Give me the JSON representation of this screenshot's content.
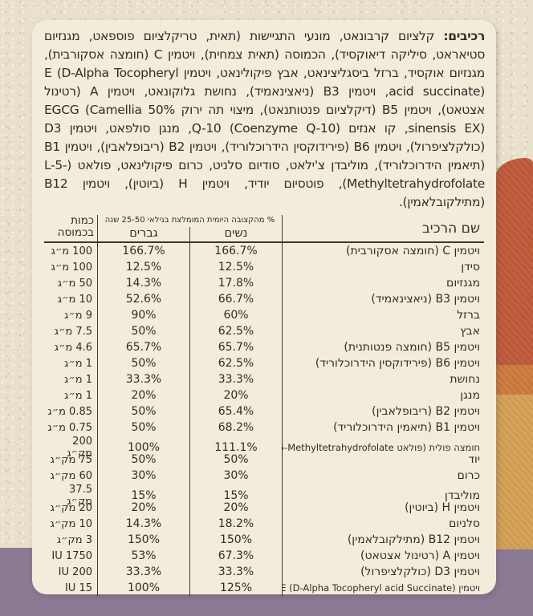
{
  "colors": {
    "page_background": "#e9e0cc",
    "card_background": "#f4ecda",
    "text": "#302c27",
    "bottom_band_purple": "#8b7a94",
    "side_band_dark_orange": "#bf5a39",
    "side_band_orange": "#cd7a3e",
    "side_band_gold": "#d4a155"
  },
  "label": {
    "ingredients_title": "רכיבים:",
    "ingredients_text": "קלציום קרבונאט, מונעי התגיישות (תאית, טריקלציום פוספאט, מגנזיום סטיאראט, סיליקה דיאוקסיד), הכמוסה (תאית צמחית), ויטמין C (חומצה אסקורבית), מגנזיום אוקסיד, ברזל ביסגליצינאט, אבץ פיקולינאט, ויטמין E (D-Alpha Tocopheryl acid succinate), ויטמין B3 (ניאצינאמיד), נחושת גלוקונאט, ויטמין A (רטינול אצטאט), ויטמין B5 (דיקלציום פנטותנאט), מיצוי תה ירוק 50% EGCG (Camellia sinensis EX), קו אנזים Q-10 (Coenzyme Q-10), מנגן סולפאט, ויטמין D3 (כולקלציפרול), ויטמין B6 (פירידוקסין הידרוכלוריד), ויטמין B2 (ריבופלאבין), ויטמין B1 (תיאמין הידרוכלוריד), מוליבדן צ'ילאט, סודיום סלניט, כרום פיקולינאט, פולאט (L-5-Methyltetrahydrofolate), פוטסיום יודיד, ויטמין H (ביוטין), ויטמין B12 (מתילקובלאמין)."
  },
  "table": {
    "col_name": "שם הרכיב",
    "rda_header": "% מהקצובה היומית המומלצת בגילאי 25-50 שנה",
    "col_women": "נשים",
    "col_men": "גברים",
    "col_amount_line1": "כמות",
    "col_amount_line2": "בכמוסה",
    "rows": [
      {
        "name": "ויטמין C (חומצה אסקורבית)",
        "women": "166.7%",
        "men": "166.7%",
        "amount": "100 מ״ג"
      },
      {
        "name": "סידן",
        "women": "12.5%",
        "men": "12.5%",
        "amount": "100 מ״ג"
      },
      {
        "name": "מגנזיום",
        "women": "17.8%",
        "men": "14.3%",
        "amount": "50 מ״ג"
      },
      {
        "name": "ויטמין B3 (ניאצינאמיד)",
        "women": "66.7%",
        "men": "52.6%",
        "amount": "10 מ״ג"
      },
      {
        "name": "ברזל",
        "women": "60%",
        "men": "90%",
        "amount": "9 מ״ג"
      },
      {
        "name": "אבץ",
        "women": "62.5%",
        "men": "50%",
        "amount": "7.5 מ״ג"
      },
      {
        "name": "ויטמין B5 (חומצה פנטותנית)",
        "women": "65.7%",
        "men": "65.7%",
        "amount": "4.6 מ״ג"
      },
      {
        "name": "ויטמין B6 (פירידוקסין הידרוכלוריד)",
        "women": "62.5%",
        "men": "50%",
        "amount": "1 מ״ג"
      },
      {
        "name": "נחושת",
        "women": "33.3%",
        "men": "33.3%",
        "amount": "1 מ״ג"
      },
      {
        "name": "מנגן",
        "women": "20%",
        "men": "20%",
        "amount": "1 מ״ג"
      },
      {
        "name": "ויטמין B2 (ריבופלאבין)",
        "women": "65.4%",
        "men": "50%",
        "amount": "0.85 מ״ג"
      },
      {
        "name": "ויטמין B1 (תיאמין הידרוכלוריד)",
        "women": "68.2%",
        "men": "50%",
        "amount": "0.75 מ״ג"
      },
      {
        "name": "חומצה פולית (פולאט L-5-Methyltetrahydrofolate)",
        "women": "111.1%",
        "men": "100%",
        "amount": "200 מק״ג"
      },
      {
        "name": "יוד",
        "women": "50%",
        "men": "50%",
        "amount": "75 מק״ג"
      },
      {
        "name": "כרום",
        "women": "30%",
        "men": "30%",
        "amount": "60 מק״ג"
      },
      {
        "name": "מוליבדן",
        "women": "15%",
        "men": "15%",
        "amount": "37.5 מק״ג"
      },
      {
        "name": "ויטמין H (ביוטין)",
        "women": "20%",
        "men": "20%",
        "amount": "20 מק״ג"
      },
      {
        "name": "סלניום",
        "women": "18.2%",
        "men": "14.3%",
        "amount": "10 מק״ג"
      },
      {
        "name": "ויטמין B12 (מתילקובלאמין)",
        "women": "150%",
        "men": "150%",
        "amount": "3 מק״ג"
      },
      {
        "name": "ויטמין A (רטינול אצטאט)",
        "women": "67.3%",
        "men": "53%",
        "amount": "1750 IU"
      },
      {
        "name": "ויטמין D3 (כולקלציפרול)",
        "women": "33.3%",
        "men": "33.3%",
        "amount": "200 IU"
      },
      {
        "name": "ויטמין E (D-Alpha Tocopheryl acid Succinate)",
        "women": "125%",
        "men": "100%",
        "amount": "15 IU"
      }
    ]
  }
}
